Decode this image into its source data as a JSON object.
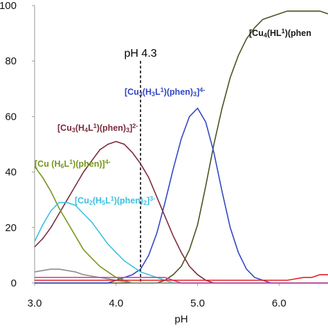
{
  "chart_data": {
    "type": "line",
    "xlabel": "pH",
    "xlim": [
      3.0,
      6.6
    ],
    "ylim": [
      0,
      100
    ],
    "xticks": [
      {
        "value": 3,
        "label": "3.0"
      },
      {
        "value": 4,
        "label": "4.0"
      },
      {
        "value": 5,
        "label": "5.0"
      },
      {
        "value": 6,
        "label": "6.0"
      }
    ],
    "yticks": [
      0,
      20,
      40,
      60,
      80,
      100
    ],
    "annotations": [
      {
        "text": "pH 4.3",
        "x": 4.3
      }
    ],
    "x": [
      3.0,
      3.1,
      3.2,
      3.3,
      3.4,
      3.5,
      3.6,
      3.7,
      3.8,
      3.9,
      4.0,
      4.1,
      4.2,
      4.3,
      4.4,
      4.5,
      4.6,
      4.7,
      4.8,
      4.9,
      5.0,
      5.1,
      5.2,
      5.3,
      5.4,
      5.5,
      5.6,
      5.7,
      5.8,
      5.9,
      6.0,
      6.1,
      6.2,
      6.3,
      6.4,
      6.5,
      6.6
    ],
    "series": [
      {
        "name": [
          "[Cu",
          {
            "sub": "4"
          },
          "(HL",
          {
            "sup": "1"
          },
          ")(phen"
        ],
        "color": "#4b5220",
        "values": [
          0,
          0,
          0,
          0,
          0,
          0,
          0,
          0,
          0,
          0,
          0,
          0,
          0,
          0,
          0,
          0,
          1,
          3,
          6,
          12,
          21,
          35,
          50,
          63,
          74,
          82,
          88,
          92,
          95,
          96,
          97,
          98,
          98,
          98,
          98,
          98,
          97
        ]
      },
      {
        "name": [
          "[Cu",
          {
            "sub": "3"
          },
          "(H",
          {
            "sub": "3"
          },
          "L",
          {
            "sup": "1"
          },
          ")(phen)",
          {
            "sub": "3"
          },
          "]",
          {
            "sup": "4-"
          }
        ],
        "color": "#3346c4",
        "values": [
          0,
          0,
          0,
          0,
          0,
          0,
          0,
          0,
          0,
          0,
          1,
          2,
          3,
          5,
          10,
          18,
          29,
          41,
          52,
          60,
          63,
          58,
          47,
          33,
          20,
          11,
          5,
          2,
          1,
          0,
          0,
          0,
          0,
          0,
          0,
          0,
          0
        ]
      },
      {
        "name": [
          "[Cu",
          {
            "sub": "3"
          },
          "(H",
          {
            "sub": "4"
          },
          "L",
          {
            "sup": "1"
          },
          ")(phen)",
          {
            "sub": "3"
          },
          "]",
          {
            "sup": "2-"
          }
        ],
        "color": "#7b2b3b",
        "values": [
          13,
          16,
          20,
          25,
          30,
          35,
          40,
          44,
          48,
          50,
          51,
          50,
          47,
          43,
          38,
          31,
          24,
          17,
          11,
          6,
          3,
          1,
          0,
          0,
          0,
          0,
          0,
          0,
          0,
          0,
          0,
          0,
          0,
          0,
          0,
          0,
          0
        ]
      },
      {
        "name": [
          "[Cu (H",
          {
            "sub": "6"
          },
          "L",
          {
            "sup": "1"
          },
          ")(phen)]",
          {
            "sup": "4-"
          }
        ],
        "color": "#76961c",
        "values": [
          42,
          38,
          33,
          27,
          22,
          17,
          12,
          9,
          6,
          4,
          2,
          1,
          0,
          0,
          0,
          0,
          0,
          0,
          0,
          0,
          0,
          0,
          0,
          0,
          0,
          0,
          0,
          0,
          0,
          0,
          0,
          0,
          0,
          0,
          0,
          0,
          0
        ]
      },
      {
        "name": [
          "[Cu",
          {
            "sub": "2"
          },
          "(H",
          {
            "sub": "5"
          },
          "L",
          {
            "sup": "1"
          },
          ")(phen)",
          {
            "sub": "2"
          },
          "]",
          {
            "sup": "3-"
          }
        ],
        "color": "#3cc0e0",
        "values": [
          15,
          21,
          26,
          29,
          29,
          28,
          25,
          22,
          18,
          14,
          11,
          8,
          6,
          4,
          3,
          2,
          1,
          0,
          0,
          0,
          0,
          0,
          0,
          0,
          0,
          0,
          0,
          0,
          0,
          0,
          0,
          0,
          0,
          0,
          0,
          0,
          0
        ]
      },
      {
        "color": "#8c8c8c",
        "values": [
          4,
          4.5,
          5,
          5,
          4.5,
          4,
          3,
          2.5,
          2,
          1.5,
          1,
          0.5,
          0,
          0,
          0,
          0,
          0,
          0,
          0,
          0,
          0,
          0,
          0,
          0,
          0,
          0,
          0,
          0,
          0,
          0,
          0,
          0,
          0,
          0,
          0,
          0,
          0
        ]
      },
      {
        "color": "#d040a0",
        "values": [
          2,
          2,
          2,
          2,
          2,
          2,
          2,
          2,
          2,
          2,
          2,
          2,
          2,
          2,
          2,
          2,
          2,
          1,
          0,
          0,
          0,
          0,
          0,
          0,
          0,
          0,
          0,
          0,
          0,
          0,
          0,
          0,
          0,
          0,
          0,
          0,
          0
        ]
      },
      {
        "color": "#e02020",
        "values": [
          1,
          1,
          1,
          1,
          1,
          1,
          1,
          1,
          1,
          1,
          1,
          1,
          1,
          1,
          1,
          1,
          1,
          1,
          1,
          1,
          1,
          1,
          1,
          1,
          1,
          1,
          1,
          1,
          1,
          1,
          1,
          1,
          1.5,
          2,
          2,
          3,
          3
        ]
      }
    ]
  }
}
